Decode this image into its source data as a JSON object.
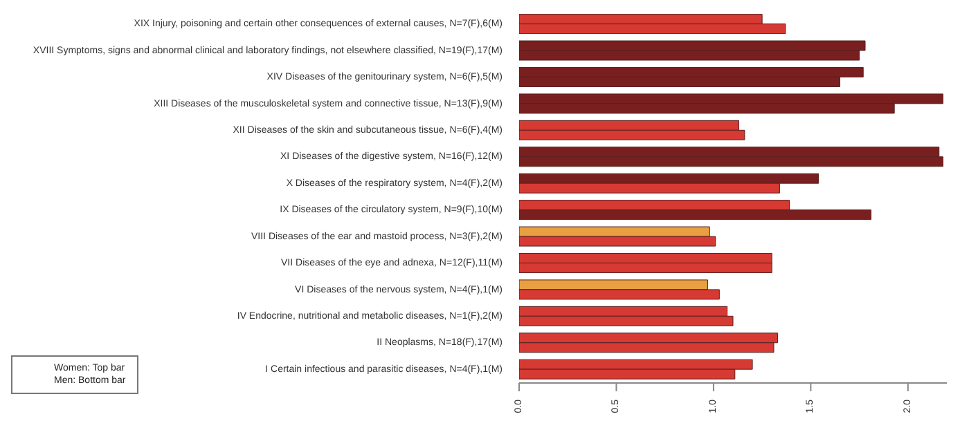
{
  "chart_data": {
    "type": "bar",
    "orientation": "horizontal",
    "categories": [
      "XIX Injury, poisoning and certain other consequences of external causes, N=7(F),6(M)",
      "XVIII Symptoms, signs and abnormal clinical and laboratory findings, not elsewhere classified, N=19(F),17(M)",
      "XIV Diseases of the genitourinary system, N=6(F),5(M)",
      "XIII Diseases of the musculoskeletal system and connective tissue, N=13(F),9(M)",
      "XII Diseases of the skin and subcutaneous tissue, N=6(F),4(M)",
      "XI Diseases of the digestive system, N=16(F),12(M)",
      "X Diseases of the respiratory system, N=4(F),2(M)",
      "IX Diseases of the circulatory system, N=9(F),10(M)",
      "VIII Diseases of the ear and mastoid process, N=3(F),2(M)",
      "VII Diseases of the eye and adnexa, N=12(F),11(M)",
      "VI Diseases of the nervous system, N=4(F),1(M)",
      "IV Endocrine, nutritional and metabolic diseases, N=1(F),2(M)",
      "II Neoplasms, N=18(F),17(M)",
      "I Certain infectious and parasitic diseases, N=4(F),1(M)"
    ],
    "series": [
      {
        "values": [
          1.25,
          1.78,
          1.77,
          2.18,
          1.13,
          2.16,
          1.54,
          1.39,
          0.98,
          1.3,
          0.97,
          1.07,
          1.33,
          1.2
        ],
        "colors": [
          "#d63a33",
          "#7a1f1f",
          "#7a1f1f",
          "#7a1f1f",
          "#d63a33",
          "#7a1f1f",
          "#7a1f1f",
          "#d63a33",
          "#e8a040",
          "#d63a33",
          "#e8a040",
          "#d63a33",
          "#d63a33",
          "#d63a33"
        ]
      },
      {
        "values": [
          1.37,
          1.75,
          1.65,
          1.93,
          1.16,
          2.18,
          1.34,
          1.81,
          1.01,
          1.3,
          1.03,
          1.1,
          1.31,
          1.11
        ],
        "colors": [
          "#d63a33",
          "#7a1f1f",
          "#7a1f1f",
          "#7a1f1f",
          "#d63a33",
          "#7a1f1f",
          "#d63a33",
          "#7a1f1f",
          "#d63a33",
          "#d63a33",
          "#d63a33",
          "#d63a33",
          "#d63a33",
          "#d63a33"
        ]
      }
    ],
    "xlim": [
      0,
      2.2
    ],
    "xticks": [
      {
        "value": 0,
        "label": "0.0"
      },
      {
        "value": 0.5,
        "label": "0.5"
      },
      {
        "value": 1,
        "label": "1.0"
      },
      {
        "value": 1.5,
        "label": "1.5"
      },
      {
        "value": 2,
        "label": "2.0"
      }
    ],
    "grid": false,
    "annotations": [
      "Women: Top bar",
      "Men: Bottom bar"
    ]
  }
}
